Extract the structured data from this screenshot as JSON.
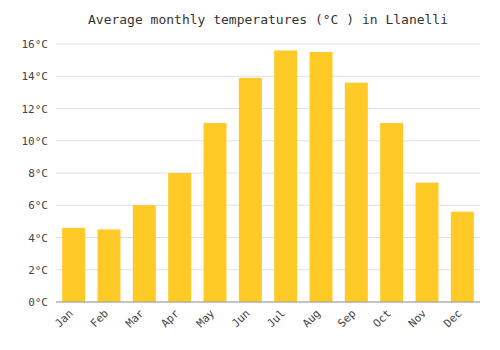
{
  "chart_data": {
    "type": "bar",
    "title": "Average monthly temperatures (°C ) in Llanelli",
    "categories": [
      "Jan",
      "Feb",
      "Mar",
      "Apr",
      "May",
      "Jun",
      "Jul",
      "Aug",
      "Sep",
      "Oct",
      "Nov",
      "Dec"
    ],
    "values": [
      4.6,
      4.5,
      6.0,
      8.0,
      11.1,
      13.9,
      15.6,
      15.5,
      13.6,
      11.1,
      7.4,
      5.6
    ],
    "color": "#FFC926",
    "ylim": [
      0,
      16
    ],
    "yticks": [
      {
        "value": 0,
        "label": "0°C"
      },
      {
        "value": 2,
        "label": "2°C"
      },
      {
        "value": 4,
        "label": "4°C"
      },
      {
        "value": 6,
        "label": "6°C"
      },
      {
        "value": 8,
        "label": "8°C"
      },
      {
        "value": 10,
        "label": "10°C"
      },
      {
        "value": 12,
        "label": "12°C"
      },
      {
        "value": 14,
        "label": "14°C"
      },
      {
        "value": 16,
        "label": "16°C"
      }
    ],
    "grid": true
  }
}
